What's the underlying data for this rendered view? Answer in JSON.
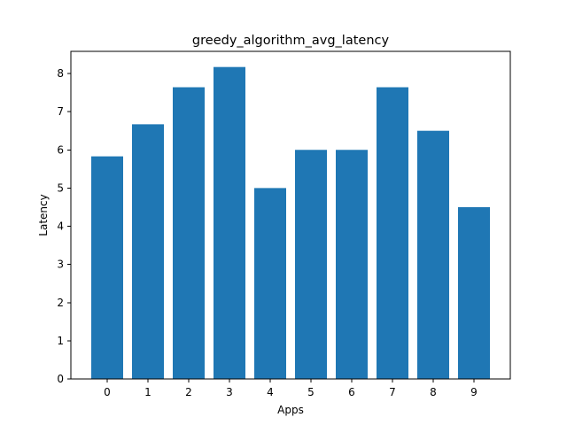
{
  "chart_data": {
    "type": "bar",
    "title": "greedy_algorithm_avg_latency",
    "xlabel": "Apps",
    "ylabel": "Latency",
    "categories": [
      "0",
      "1",
      "2",
      "3",
      "4",
      "5",
      "6",
      "7",
      "8",
      "9"
    ],
    "values": [
      5.83,
      6.67,
      7.64,
      8.17,
      5.0,
      6.0,
      6.0,
      7.64,
      6.5,
      4.5
    ],
    "ylim": [
      0,
      8.58
    ],
    "yticks": [
      "0",
      "1",
      "2",
      "3",
      "4",
      "5",
      "6",
      "7",
      "8"
    ],
    "bar_color": "#1f77b4",
    "grid": false,
    "legend": "none"
  }
}
